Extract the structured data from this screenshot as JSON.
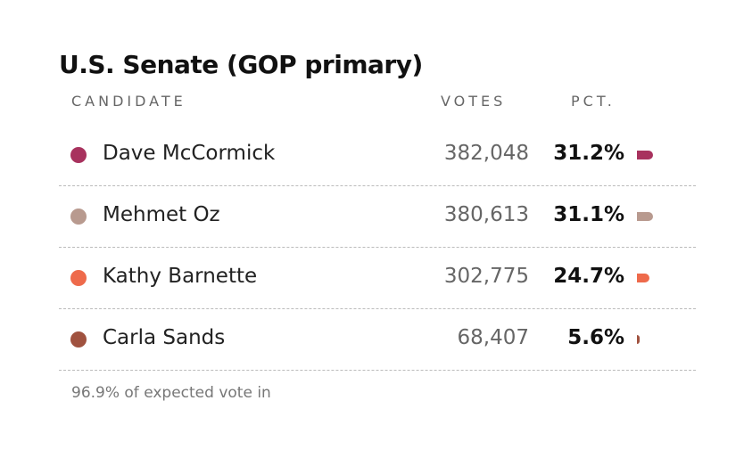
{
  "title": "U.S. Senate (GOP primary)",
  "table": {
    "headers": [
      "CANDIDATE",
      "VOTES",
      "PCT."
    ],
    "rows": [
      {
        "name": "Dave McCormick",
        "color": "#a8325e",
        "votes": "382,048",
        "pct": 31.2,
        "pct_label": "31.2%"
      },
      {
        "name": "Mehmet Oz",
        "color": "#b89a8f",
        "votes": "380,613",
        "pct": 31.1,
        "pct_label": "31.1%"
      },
      {
        "name": "Kathy Barnette",
        "color": "#ee6a4b",
        "votes": "302,775",
        "pct": 24.7,
        "pct_label": "24.7%"
      },
      {
        "name": "Carla Sands",
        "color": "#a0523f",
        "votes": "68,407",
        "pct": 5.6,
        "pct_label": "5.6%"
      }
    ]
  },
  "footer": "96.9% of expected vote in"
}
